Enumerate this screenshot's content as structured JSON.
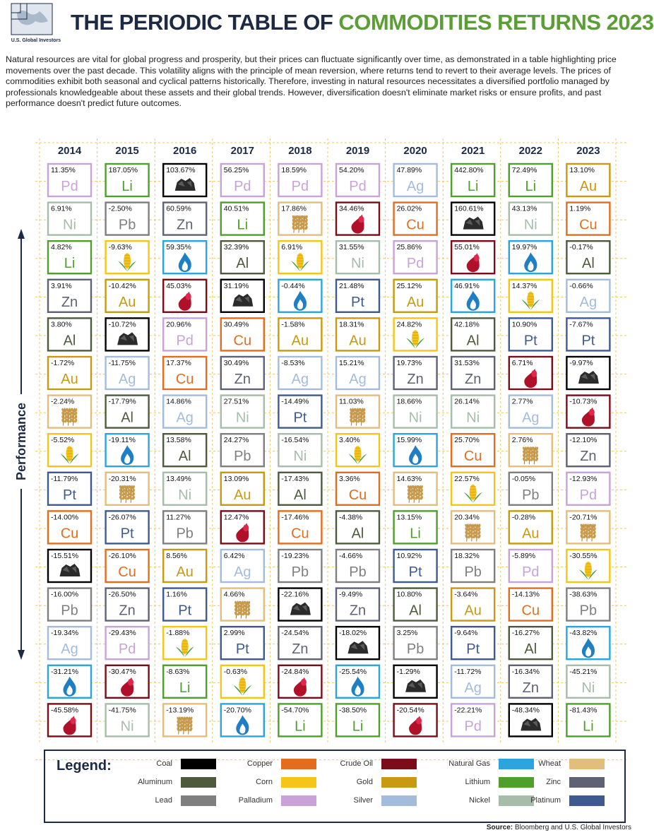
{
  "header": {
    "title_part1": "THE PERIODIC TABLE OF ",
    "title_part2": "COMMODITIES RETURNS 2023",
    "logo_text": "U.S. Global Investors"
  },
  "intro": "Natural resources are vital for global progress and prosperity, but their prices can fluctuate significantly over time, as demonstrated in a table highlighting price movements over the past decade. This volatility aligns with the principle of mean reversion, where returns tend to revert to their average levels. The prices of commodities exhibit both seasonal and cyclical patterns historically. Therefore, investing in natural resources necessitates a diversified portfolio managed by professionals knowledgeable about these assets and their global trends. However, diversification doesn't eliminate market risks or ensure profits, and past performance doesn't predict future outcomes.",
  "axis_label": "Performance",
  "commodities": {
    "Coal": {
      "symbol": "",
      "color": "#000000",
      "icon": "coal-icon"
    },
    "Copper": {
      "symbol": "Cu",
      "color": "#e36d1f"
    },
    "Crude Oil": {
      "symbol": "",
      "color": "#7a0d18",
      "icon": "oil-drop-icon"
    },
    "Natural Gas": {
      "symbol": "",
      "color": "#2ea4dc",
      "icon": "flame-icon"
    },
    "Wheat": {
      "symbol": "",
      "color": "#e3bd7c",
      "icon": "wheat-icon"
    },
    "Aluminum": {
      "symbol": "Al",
      "color": "#4d5b3c"
    },
    "Corn": {
      "symbol": "",
      "color": "#f5c518",
      "icon": "corn-icon"
    },
    "Gold": {
      "symbol": "Au",
      "color": "#c79a12"
    },
    "Lithium": {
      "symbol": "Li",
      "color": "#4f9f2d"
    },
    "Zinc": {
      "symbol": "Zn",
      "color": "#5e6273"
    },
    "Lead": {
      "symbol": "Pb",
      "color": "#7f7f7f"
    },
    "Palladium": {
      "symbol": "Pd",
      "color": "#c9a3d8"
    },
    "Silver": {
      "symbol": "Ag",
      "color": "#a4bcdb"
    },
    "Nickel": {
      "symbol": "Ni",
      "color": "#a6bda9"
    },
    "Platinum": {
      "symbol": "Pt",
      "color": "#3f5a8e"
    }
  },
  "chart_data": {
    "type": "table",
    "title": "THE PERIODIC TABLE OF COMMODITIES RETURNS 2023",
    "ylabel": "Performance",
    "years": [
      "2014",
      "2015",
      "2016",
      "2017",
      "2018",
      "2019",
      "2020",
      "2021",
      "2022",
      "2023"
    ],
    "columns": [
      [
        [
          "Palladium",
          "11.35%"
        ],
        [
          "Nickel",
          "6.91%"
        ],
        [
          "Lithium",
          "4.82%"
        ],
        [
          "Zinc",
          "3.91%"
        ],
        [
          "Aluminum",
          "3.80%"
        ],
        [
          "Gold",
          "-1.72%"
        ],
        [
          "Wheat",
          "-2.24%"
        ],
        [
          "Corn",
          "-5.52%"
        ],
        [
          "Platinum",
          "-11.79%"
        ],
        [
          "Copper",
          "-14.00%"
        ],
        [
          "Coal",
          "-15.51%"
        ],
        [
          "Lead",
          "-16.00%"
        ],
        [
          "Silver",
          "-19.34%"
        ],
        [
          "Natural Gas",
          "-31.21%"
        ],
        [
          "Crude Oil",
          "-45.58%"
        ]
      ],
      [
        [
          "Lithium",
          "187.05%"
        ],
        [
          "Lead",
          "-2.50%"
        ],
        [
          "Corn",
          "-9.63%"
        ],
        [
          "Gold",
          "-10.42%"
        ],
        [
          "Coal",
          "-10.72%"
        ],
        [
          "Silver",
          "-11.75%"
        ],
        [
          "Aluminum",
          "-17.79%"
        ],
        [
          "Natural Gas",
          "-19.11%"
        ],
        [
          "Wheat",
          "-20.31%"
        ],
        [
          "Platinum",
          "-26.07%"
        ],
        [
          "Copper",
          "-26.10%"
        ],
        [
          "Zinc",
          "-26.50%"
        ],
        [
          "Palladium",
          "-29.43%"
        ],
        [
          "Crude Oil",
          "-30.47%"
        ],
        [
          "Nickel",
          "-41.75%"
        ]
      ],
      [
        [
          "Coal",
          "103.67%"
        ],
        [
          "Zinc",
          "60.59%"
        ],
        [
          "Natural Gas",
          "59.35%"
        ],
        [
          "Crude Oil",
          "45.03%"
        ],
        [
          "Palladium",
          "20.96%"
        ],
        [
          "Copper",
          "17.37%"
        ],
        [
          "Silver",
          "14.86%"
        ],
        [
          "Aluminum",
          "13.58%"
        ],
        [
          "Nickel",
          "13.49%"
        ],
        [
          "Lead",
          "11.27%"
        ],
        [
          "Gold",
          "8.56%"
        ],
        [
          "Platinum",
          "1.16%"
        ],
        [
          "Corn",
          "-1.88%"
        ],
        [
          "Lithium",
          "-8.63%"
        ],
        [
          "Wheat",
          "-13.19%"
        ]
      ],
      [
        [
          "Palladium",
          "56.25%"
        ],
        [
          "Lithium",
          "40.51%"
        ],
        [
          "Aluminum",
          "32.39%"
        ],
        [
          "Coal",
          "31.19%"
        ],
        [
          "Copper",
          "30.49%"
        ],
        [
          "Zinc",
          "30.49%"
        ],
        [
          "Nickel",
          "27.51%"
        ],
        [
          "Lead",
          "24.27%"
        ],
        [
          "Gold",
          "13.09%"
        ],
        [
          "Crude Oil",
          "12.47%"
        ],
        [
          "Silver",
          "6.42%"
        ],
        [
          "Wheat",
          "4.66%"
        ],
        [
          "Platinum",
          "2.99%"
        ],
        [
          "Corn",
          "-0.63%"
        ],
        [
          "Natural Gas",
          "-20.70%"
        ]
      ],
      [
        [
          "Palladium",
          "18.59%"
        ],
        [
          "Wheat",
          "17.86%"
        ],
        [
          "Corn",
          "6.91%"
        ],
        [
          "Natural Gas",
          "-0.44%"
        ],
        [
          "Gold",
          "-1.58%"
        ],
        [
          "Silver",
          "-8.53%"
        ],
        [
          "Platinum",
          "-14.49%"
        ],
        [
          "Nickel",
          "-16.54%"
        ],
        [
          "Aluminum",
          "-17.43%"
        ],
        [
          "Copper",
          "-17.46%"
        ],
        [
          "Lead",
          "-19.23%"
        ],
        [
          "Coal",
          "-22.16%"
        ],
        [
          "Zinc",
          "-24.54%"
        ],
        [
          "Crude Oil",
          "-24.84%"
        ],
        [
          "Lithium",
          "-54.70%"
        ]
      ],
      [
        [
          "Palladium",
          "54.20%"
        ],
        [
          "Crude Oil",
          "34.46%"
        ],
        [
          "Nickel",
          "31.55%"
        ],
        [
          "Platinum",
          "21.48%"
        ],
        [
          "Gold",
          "18.31%"
        ],
        [
          "Silver",
          "15.21%"
        ],
        [
          "Wheat",
          "11.03%"
        ],
        [
          "Corn",
          "3.40%"
        ],
        [
          "Copper",
          "3.36%"
        ],
        [
          "Aluminum",
          "-4.38%"
        ],
        [
          "Lead",
          "-4.66%"
        ],
        [
          "Zinc",
          "-9.49%"
        ],
        [
          "Coal",
          "-18.02%"
        ],
        [
          "Natural Gas",
          "-25.54%"
        ],
        [
          "Lithium",
          "-38.50%"
        ]
      ],
      [
        [
          "Silver",
          "47.89%"
        ],
        [
          "Copper",
          "26.02%"
        ],
        [
          "Palladium",
          "25.86%"
        ],
        [
          "Gold",
          "25.12%"
        ],
        [
          "Corn",
          "24.82%"
        ],
        [
          "Zinc",
          "19.73%"
        ],
        [
          "Nickel",
          "18.66%"
        ],
        [
          "Natural Gas",
          "15.99%"
        ],
        [
          "Wheat",
          "14.63%"
        ],
        [
          "Lithium",
          "13.15%"
        ],
        [
          "Platinum",
          "10.92%"
        ],
        [
          "Aluminum",
          "10.80%"
        ],
        [
          "Lead",
          "3.25%"
        ],
        [
          "Coal",
          "-1.29%"
        ],
        [
          "Crude Oil",
          "-20.54%"
        ]
      ],
      [
        [
          "Lithium",
          "442.80%"
        ],
        [
          "Coal",
          "160.61%"
        ],
        [
          "Crude Oil",
          "55.01%"
        ],
        [
          "Natural Gas",
          "46.91%"
        ],
        [
          "Aluminum",
          "42.18%"
        ],
        [
          "Zinc",
          "31.53%"
        ],
        [
          "Nickel",
          "26.14%"
        ],
        [
          "Copper",
          "25.70%"
        ],
        [
          "Corn",
          "22.57%"
        ],
        [
          "Wheat",
          "20.34%"
        ],
        [
          "Lead",
          "18.32%"
        ],
        [
          "Gold",
          "-3.64%"
        ],
        [
          "Platinum",
          "-9.64%"
        ],
        [
          "Silver",
          "-11.72%"
        ],
        [
          "Palladium",
          "-22.21%"
        ]
      ],
      [
        [
          "Lithium",
          "72.49%"
        ],
        [
          "Nickel",
          "43.13%"
        ],
        [
          "Natural Gas",
          "19.97%"
        ],
        [
          "Corn",
          "14.37%"
        ],
        [
          "Platinum",
          "10.90%"
        ],
        [
          "Crude Oil",
          "6.71%"
        ],
        [
          "Silver",
          "2.77%"
        ],
        [
          "Wheat",
          "2.76%"
        ],
        [
          "Lead",
          "-0.05%"
        ],
        [
          "Gold",
          "-0.28%"
        ],
        [
          "Palladium",
          "-5.89%"
        ],
        [
          "Copper",
          "-14.13%"
        ],
        [
          "Aluminum",
          "-16.27%"
        ],
        [
          "Zinc",
          "-16.34%"
        ],
        [
          "Coal",
          "-48.34%"
        ]
      ],
      [
        [
          "Gold",
          "13.10%"
        ],
        [
          "Copper",
          "1.19%"
        ],
        [
          "Aluminum",
          "-0.17%"
        ],
        [
          "Silver",
          "-0.66%"
        ],
        [
          "Platinum",
          "-7.67%"
        ],
        [
          "Coal",
          "-9.97%"
        ],
        [
          "Crude Oil",
          "-10.73%"
        ],
        [
          "Zinc",
          "-12.10%"
        ],
        [
          "Palladium",
          "-12.93%"
        ],
        [
          "Wheat",
          "-20.71%"
        ],
        [
          "Corn",
          "-30.55%"
        ],
        [
          "Lead",
          "-38.63%"
        ],
        [
          "Natural Gas",
          "-43.82%"
        ],
        [
          "Nickel",
          "-45.21%"
        ],
        [
          "Lithium",
          "-81.43%"
        ]
      ]
    ]
  },
  "legend": {
    "title": "Legend:",
    "items": [
      "Coal",
      "Copper",
      "Crude Oil",
      "Natural Gas",
      "Wheat",
      "Aluminum",
      "Corn",
      "Gold",
      "Lithium",
      "Zinc",
      "Lead",
      "Palladium",
      "Silver",
      "Nickel",
      "Platinum"
    ]
  },
  "source": {
    "label": "Source:",
    "text": " Bloomberg and U.S. Global Investors"
  }
}
